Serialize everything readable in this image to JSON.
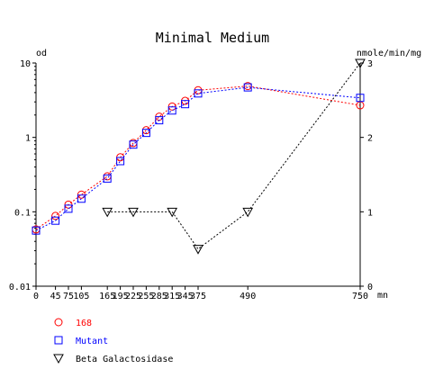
{
  "chart_data": {
    "type": "line",
    "title": "Minimal Medium",
    "left_axis": {
      "unit_label": "od",
      "scale": "log",
      "range": [
        0.01,
        10
      ],
      "tick_labels": [
        "0.01",
        "0.1",
        "1",
        "10"
      ],
      "tick_values": [
        0.01,
        0.1,
        1,
        10
      ]
    },
    "right_axis": {
      "unit_label": "nmole/min/mg",
      "scale": "linear",
      "range": [
        0,
        3
      ],
      "tick_labels": [
        "0",
        "1",
        "2",
        "3"
      ],
      "tick_values": [
        0,
        1,
        2,
        3
      ]
    },
    "x_axis": {
      "unit_label": "mn",
      "range": [
        0,
        750
      ],
      "tick_labels": [
        "0",
        "45",
        "75",
        "105",
        "165",
        "195",
        "225",
        "255",
        "285",
        "315",
        "345",
        "375",
        "490",
        "750"
      ],
      "tick_values": [
        0,
        45,
        75,
        105,
        165,
        195,
        225,
        255,
        285,
        315,
        345,
        375,
        490,
        750
      ]
    },
    "grid": false,
    "legend_placement": "bottom-left",
    "series": [
      {
        "name": "168",
        "axis": "left",
        "color": "#ff0000",
        "marker": "circle",
        "x": [
          0,
          45,
          75,
          105,
          165,
          195,
          225,
          255,
          285,
          315,
          345,
          375,
          490,
          750
        ],
        "y": [
          0.058,
          0.088,
          0.125,
          0.17,
          0.3,
          0.54,
          0.84,
          1.25,
          1.9,
          2.6,
          3.1,
          4.3,
          4.9,
          2.7
        ]
      },
      {
        "name": "Mutant",
        "axis": "left",
        "color": "#0000ff",
        "marker": "square",
        "x": [
          0,
          45,
          75,
          105,
          165,
          195,
          225,
          255,
          285,
          315,
          345,
          375,
          490,
          750
        ],
        "y": [
          0.056,
          0.076,
          0.11,
          0.15,
          0.28,
          0.48,
          0.8,
          1.15,
          1.7,
          2.3,
          2.8,
          3.9,
          4.7,
          3.4
        ]
      },
      {
        "name": "Beta Galactosidase",
        "axis": "right",
        "color": "#000000",
        "marker": "triangle-down",
        "x": [
          165,
          225,
          315,
          375,
          490,
          750
        ],
        "y": [
          1.0,
          1.0,
          1.0,
          0.5,
          1.0,
          3.0
        ]
      }
    ]
  }
}
